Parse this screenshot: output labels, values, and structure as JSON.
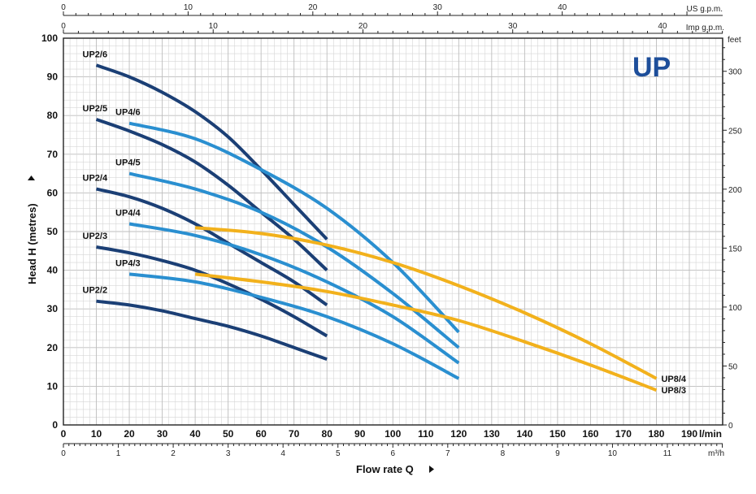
{
  "logo": "UP",
  "chart_data": {
    "type": "line",
    "xlabel": "Flow rate Q",
    "ylabel": "Head H (metres)",
    "x_unit": "l/min",
    "xlim": [
      0,
      190
    ],
    "ylim": [
      0,
      100
    ],
    "x_ticks": [
      0,
      10,
      20,
      30,
      40,
      50,
      60,
      70,
      80,
      90,
      100,
      110,
      120,
      130,
      140,
      150,
      160,
      170,
      180,
      190
    ],
    "y_ticks": [
      0,
      10,
      20,
      30,
      40,
      50,
      60,
      70,
      80,
      90,
      100
    ],
    "grid": true,
    "secondary_axes": {
      "us_gpm": {
        "label": "US g.p.m.",
        "ticks": [
          0,
          10,
          20,
          30,
          40
        ]
      },
      "imp_gpm": {
        "label": "Imp g.p.m.",
        "ticks": [
          0,
          10,
          20,
          30,
          40
        ]
      },
      "m3h": {
        "label": "m³/h",
        "ticks": [
          0,
          1,
          2,
          3,
          4,
          5,
          6,
          7,
          8,
          9,
          10,
          11
        ]
      },
      "feet": {
        "label": "feet",
        "ticks": [
          0,
          50,
          100,
          150,
          200,
          250,
          300
        ]
      }
    },
    "series": [
      {
        "name": "UP2/6",
        "color": "#1b3f75",
        "x": [
          10,
          20,
          30,
          40,
          50,
          60,
          70,
          80
        ],
        "y": [
          93,
          90,
          86,
          81,
          74.5,
          66,
          57,
          48
        ]
      },
      {
        "name": "UP2/5",
        "color": "#1b3f75",
        "x": [
          10,
          20,
          30,
          40,
          50,
          60,
          70,
          80
        ],
        "y": [
          79,
          76,
          72.5,
          68,
          62,
          55,
          48,
          40
        ]
      },
      {
        "name": "UP2/4",
        "color": "#1b3f75",
        "x": [
          10,
          20,
          30,
          40,
          50,
          60,
          70,
          80
        ],
        "y": [
          61,
          59,
          56,
          52,
          47,
          42,
          37,
          31
        ]
      },
      {
        "name": "UP2/3",
        "color": "#1b3f75",
        "x": [
          10,
          20,
          30,
          40,
          50,
          60,
          70,
          80
        ],
        "y": [
          46,
          44.5,
          42.5,
          40,
          36.5,
          32.5,
          28,
          23
        ]
      },
      {
        "name": "UP2/2",
        "color": "#1b3f75",
        "x": [
          10,
          20,
          30,
          40,
          50,
          60,
          70,
          80
        ],
        "y": [
          32,
          31,
          29.5,
          27.5,
          25.5,
          23,
          20,
          17
        ]
      },
      {
        "name": "UP4/6",
        "color": "#2a8fd0",
        "x": [
          20,
          40,
          60,
          80,
          100,
          120
        ],
        "y": [
          78,
          74,
          66,
          56,
          42,
          24
        ]
      },
      {
        "name": "UP4/5",
        "color": "#2a8fd0",
        "x": [
          20,
          40,
          60,
          80,
          100,
          120
        ],
        "y": [
          65,
          61,
          55,
          46,
          34,
          20
        ]
      },
      {
        "name": "UP4/4",
        "color": "#2a8fd0",
        "x": [
          20,
          40,
          60,
          80,
          100,
          120
        ],
        "y": [
          52,
          49,
          44,
          37,
          28,
          16
        ]
      },
      {
        "name": "UP4/3",
        "color": "#2a8fd0",
        "x": [
          20,
          40,
          60,
          80,
          100,
          120
        ],
        "y": [
          39,
          37,
          33,
          28,
          21,
          12
        ]
      },
      {
        "name": "UP8/4",
        "color": "#f2b11c",
        "x": [
          40,
          60,
          80,
          100,
          120,
          140,
          160,
          180
        ],
        "y": [
          51,
          49.5,
          46.5,
          42,
          36,
          29,
          21,
          12
        ]
      },
      {
        "name": "UP8/3",
        "color": "#f2b11c",
        "x": [
          40,
          60,
          80,
          100,
          120,
          140,
          160,
          180
        ],
        "y": [
          39,
          37,
          34.5,
          31,
          27,
          21.5,
          15.5,
          9
        ]
      }
    ]
  }
}
